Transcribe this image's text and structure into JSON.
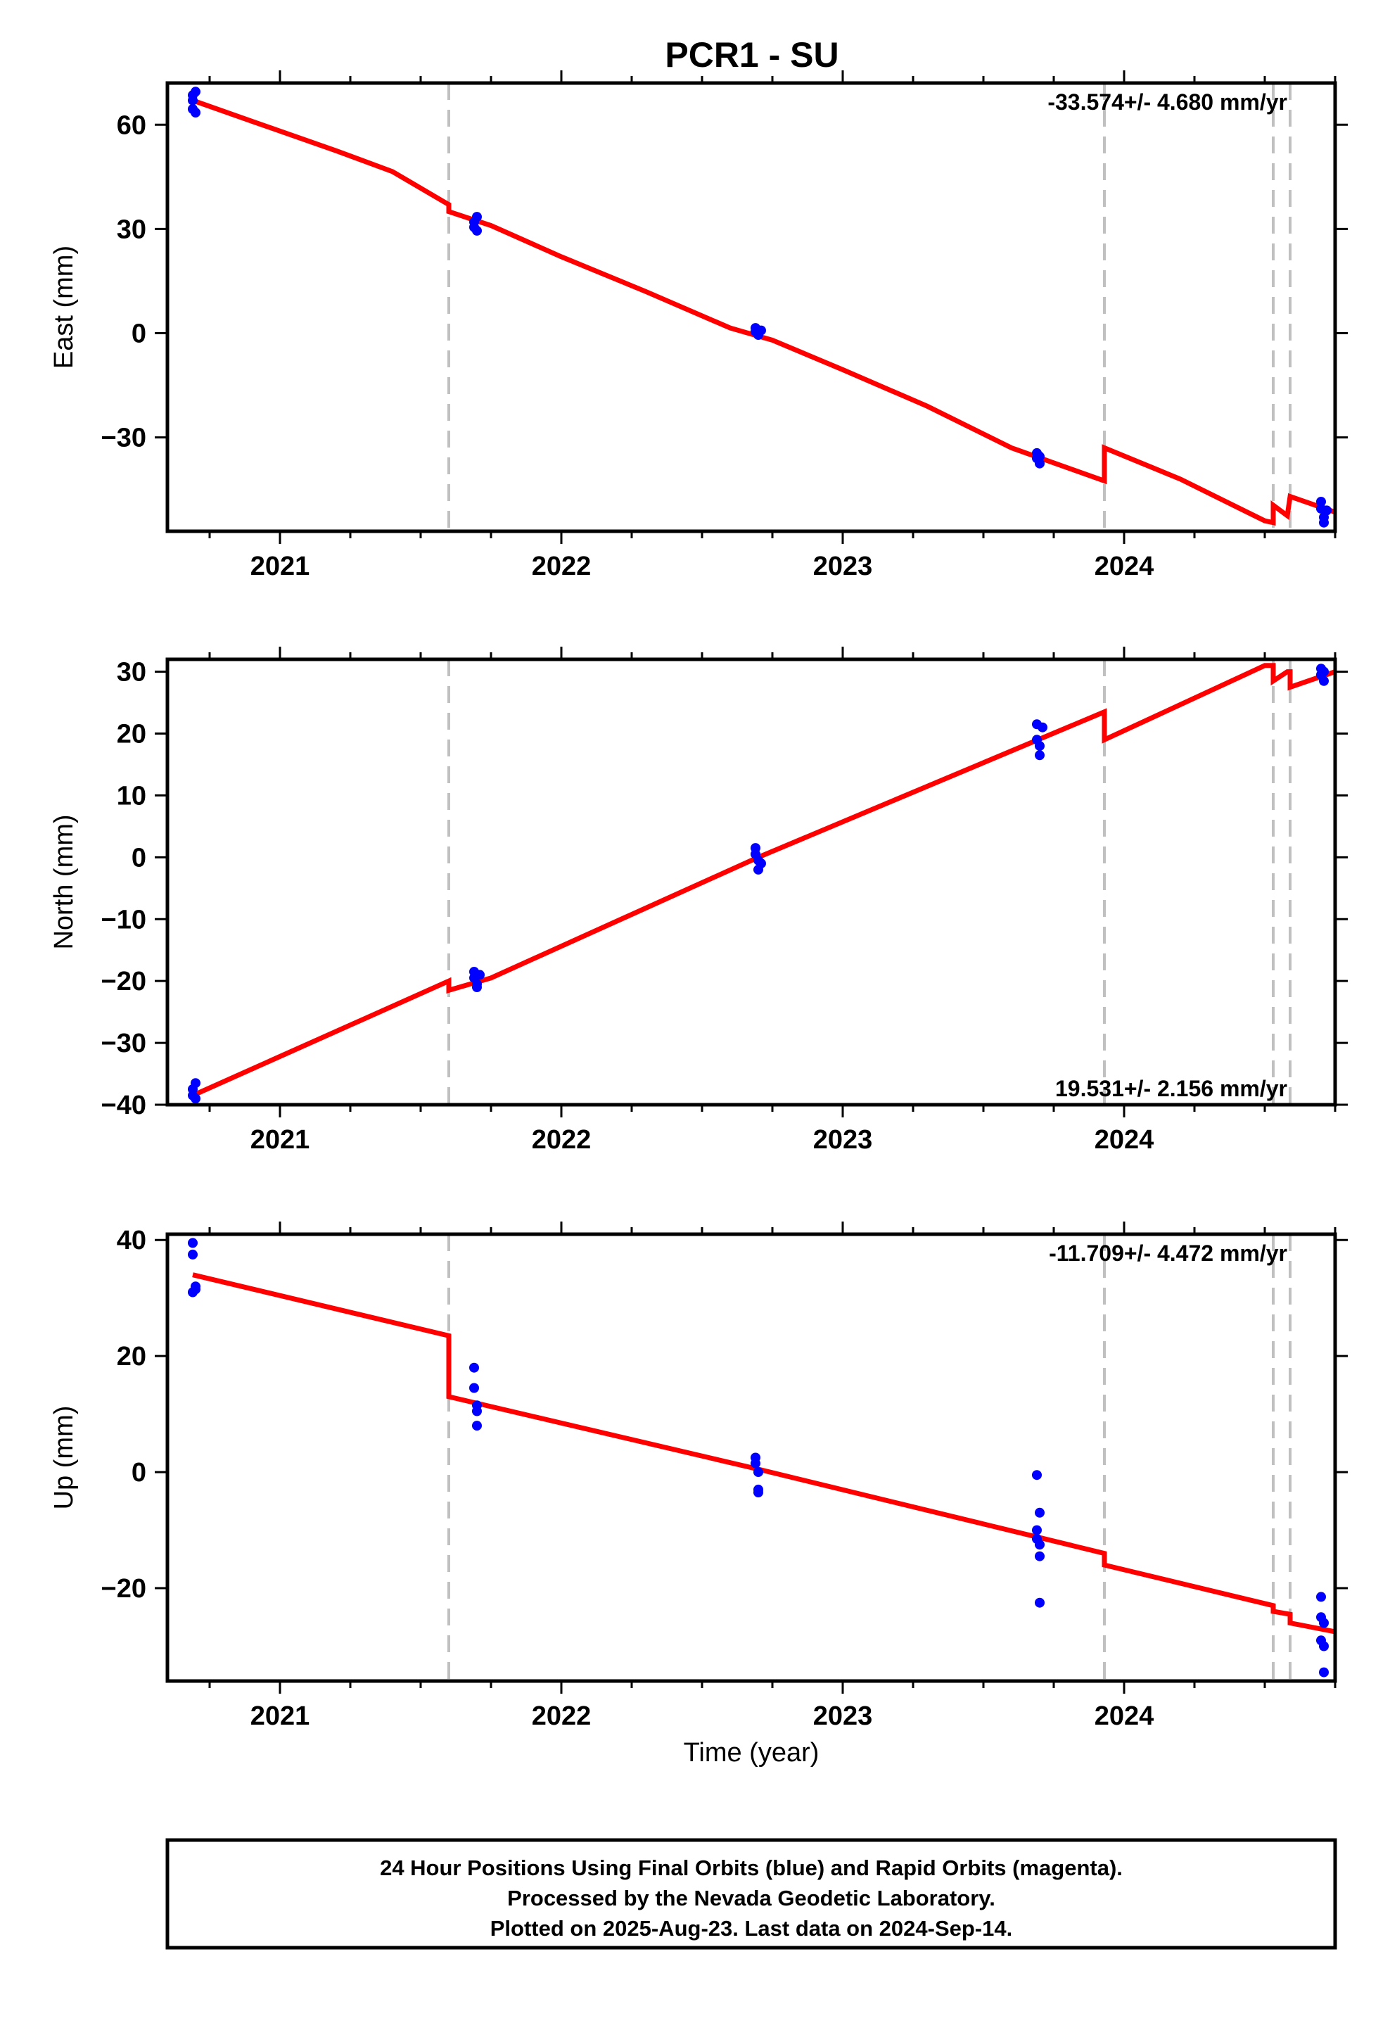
{
  "title": "PCR1 - SU",
  "xlabel": "Time (year)",
  "colors": {
    "model": "#ff0000",
    "points": "#0000ff",
    "event": "#c0c0c0",
    "frame": "#000000"
  },
  "footer": {
    "line1": "24 Hour Positions Using Final Orbits (blue) and Rapid Orbits (magenta).",
    "line2": "Processed by the Nevada Geodetic Laboratory.",
    "line3": "Plotted on 2025-Aug-23. Last data on 2024-Sep-14."
  },
  "chart_data": [
    {
      "type": "scatter",
      "name": "east",
      "ylabel": "East (mm)",
      "rate_text": "-33.574+/- 4.680 mm/yr",
      "rate_position": "top-right",
      "xlim": [
        2020.6,
        2024.75
      ],
      "ylim": [
        -57,
        72
      ],
      "x_ticks": [
        2021,
        2022,
        2023,
        2024
      ],
      "y_ticks": [
        60,
        30,
        0,
        -30
      ],
      "event_lines": [
        2021.6,
        2023.93,
        2024.53,
        2024.59
      ],
      "model_line": [
        [
          2020.69,
          67.0
        ],
        [
          2020.9,
          61.0
        ],
        [
          2021.2,
          52.5
        ],
        [
          2021.4,
          46.5
        ],
        [
          2021.6,
          37.0
        ],
        [
          2021.6,
          35.0
        ],
        [
          2021.75,
          31.0
        ],
        [
          2022.0,
          22.0
        ],
        [
          2022.3,
          12.0
        ],
        [
          2022.6,
          1.5
        ],
        [
          2022.75,
          -2.0
        ],
        [
          2023.0,
          -10.5
        ],
        [
          2023.3,
          -21.0
        ],
        [
          2023.6,
          -33.0
        ],
        [
          2023.93,
          -42.5
        ],
        [
          2023.93,
          -33.0
        ],
        [
          2024.2,
          -42.0
        ],
        [
          2024.5,
          -54.0
        ],
        [
          2024.53,
          -54.5
        ],
        [
          2024.53,
          -49.5
        ],
        [
          2024.58,
          -52.5
        ],
        [
          2024.59,
          -47.0
        ],
        [
          2024.75,
          -51.5
        ]
      ],
      "points": [
        [
          2020.69,
          68.5
        ],
        [
          2020.69,
          67.0
        ],
        [
          2020.69,
          64.5
        ],
        [
          2020.7,
          63.5
        ],
        [
          2020.7,
          69.5
        ],
        [
          2021.69,
          32.0
        ],
        [
          2021.69,
          30.5
        ],
        [
          2021.7,
          29.5
        ],
        [
          2021.7,
          33.5
        ],
        [
          2022.69,
          1.5
        ],
        [
          2022.69,
          0.5
        ],
        [
          2022.7,
          -0.5
        ],
        [
          2022.7,
          0.0
        ],
        [
          2022.71,
          0.8
        ],
        [
          2023.69,
          -34.5
        ],
        [
          2023.69,
          -36.0
        ],
        [
          2023.7,
          -37.5
        ],
        [
          2023.7,
          -35.5
        ],
        [
          2024.7,
          -48.5
        ],
        [
          2024.7,
          -50.5
        ],
        [
          2024.71,
          -53.0
        ],
        [
          2024.71,
          -54.5
        ],
        [
          2024.72,
          -51.0
        ]
      ]
    },
    {
      "type": "scatter",
      "name": "north",
      "ylabel": "North (mm)",
      "rate_text": "19.531+/- 2.156 mm/yr",
      "rate_position": "bottom-right",
      "xlim": [
        2020.6,
        2024.75
      ],
      "ylim": [
        -40,
        32
      ],
      "x_ticks": [
        2021,
        2022,
        2023,
        2024
      ],
      "y_ticks": [
        30,
        20,
        10,
        0,
        -10,
        -20,
        -30,
        -40
      ],
      "event_lines": [
        2021.6,
        2023.93,
        2024.53,
        2024.59
      ],
      "model_line": [
        [
          2020.69,
          -38.5
        ],
        [
          2021.6,
          -20.0
        ],
        [
          2021.6,
          -21.5
        ],
        [
          2021.75,
          -19.5
        ],
        [
          2022.7,
          0.0
        ],
        [
          2023.93,
          23.5
        ],
        [
          2023.93,
          19.0
        ],
        [
          2024.5,
          31.0
        ],
        [
          2024.53,
          31.0
        ],
        [
          2024.53,
          28.5
        ],
        [
          2024.58,
          30.0
        ],
        [
          2024.59,
          30.0
        ],
        [
          2024.59,
          27.5
        ],
        [
          2024.75,
          30.0
        ]
      ],
      "points": [
        [
          2020.69,
          -37.5
        ],
        [
          2020.69,
          -38.5
        ],
        [
          2020.7,
          -39.0
        ],
        [
          2020.7,
          -36.5
        ],
        [
          2021.69,
          -18.5
        ],
        [
          2021.69,
          -19.5
        ],
        [
          2021.7,
          -20.5
        ],
        [
          2021.7,
          -21.0
        ],
        [
          2021.71,
          -19.0
        ],
        [
          2022.69,
          1.5
        ],
        [
          2022.69,
          0.5
        ],
        [
          2022.7,
          -0.5
        ],
        [
          2022.7,
          -2.0
        ],
        [
          2022.71,
          -1.0
        ],
        [
          2023.69,
          21.5
        ],
        [
          2023.69,
          19.0
        ],
        [
          2023.7,
          18.0
        ],
        [
          2023.7,
          16.5
        ],
        [
          2023.71,
          21.0
        ],
        [
          2024.7,
          30.5
        ],
        [
          2024.7,
          29.5
        ],
        [
          2024.71,
          28.5
        ],
        [
          2024.71,
          30.0
        ]
      ]
    },
    {
      "type": "scatter",
      "name": "up",
      "ylabel": "Up (mm)",
      "rate_text": "-11.709+/- 4.472 mm/yr",
      "rate_position": "top-right",
      "xlim": [
        2020.6,
        2024.75
      ],
      "ylim": [
        -36,
        41
      ],
      "x_ticks": [
        2021,
        2022,
        2023,
        2024
      ],
      "y_ticks": [
        40,
        20,
        0,
        -20
      ],
      "event_lines": [
        2021.6,
        2023.93,
        2024.53,
        2024.59
      ],
      "model_line": [
        [
          2020.69,
          34.0
        ],
        [
          2021.6,
          23.5
        ],
        [
          2021.6,
          13.0
        ],
        [
          2022.7,
          0.5
        ],
        [
          2023.93,
          -14.0
        ],
        [
          2023.93,
          -16.0
        ],
        [
          2024.53,
          -23.0
        ],
        [
          2024.53,
          -24.0
        ],
        [
          2024.59,
          -24.5
        ],
        [
          2024.59,
          -26.0
        ],
        [
          2024.75,
          -27.5
        ]
      ],
      "points": [
        [
          2020.69,
          39.5
        ],
        [
          2020.69,
          37.5
        ],
        [
          2020.69,
          31.0
        ],
        [
          2020.7,
          31.5
        ],
        [
          2020.7,
          32.0
        ],
        [
          2021.69,
          18.0
        ],
        [
          2021.69,
          14.5
        ],
        [
          2021.7,
          11.5
        ],
        [
          2021.7,
          10.5
        ],
        [
          2021.7,
          8.0
        ],
        [
          2022.69,
          2.5
        ],
        [
          2022.69,
          1.5
        ],
        [
          2022.7,
          0.0
        ],
        [
          2022.7,
          -3.0
        ],
        [
          2022.7,
          -3.5
        ],
        [
          2023.69,
          -0.5
        ],
        [
          2023.7,
          -7.0
        ],
        [
          2023.69,
          -10.0
        ],
        [
          2023.69,
          -11.5
        ],
        [
          2023.7,
          -12.5
        ],
        [
          2023.7,
          -14.5
        ],
        [
          2023.7,
          -22.5
        ],
        [
          2024.7,
          -21.5
        ],
        [
          2024.7,
          -25.0
        ],
        [
          2024.7,
          -29.0
        ],
        [
          2024.71,
          -26.0
        ],
        [
          2024.71,
          -30.0
        ],
        [
          2024.71,
          -34.5
        ]
      ]
    }
  ]
}
